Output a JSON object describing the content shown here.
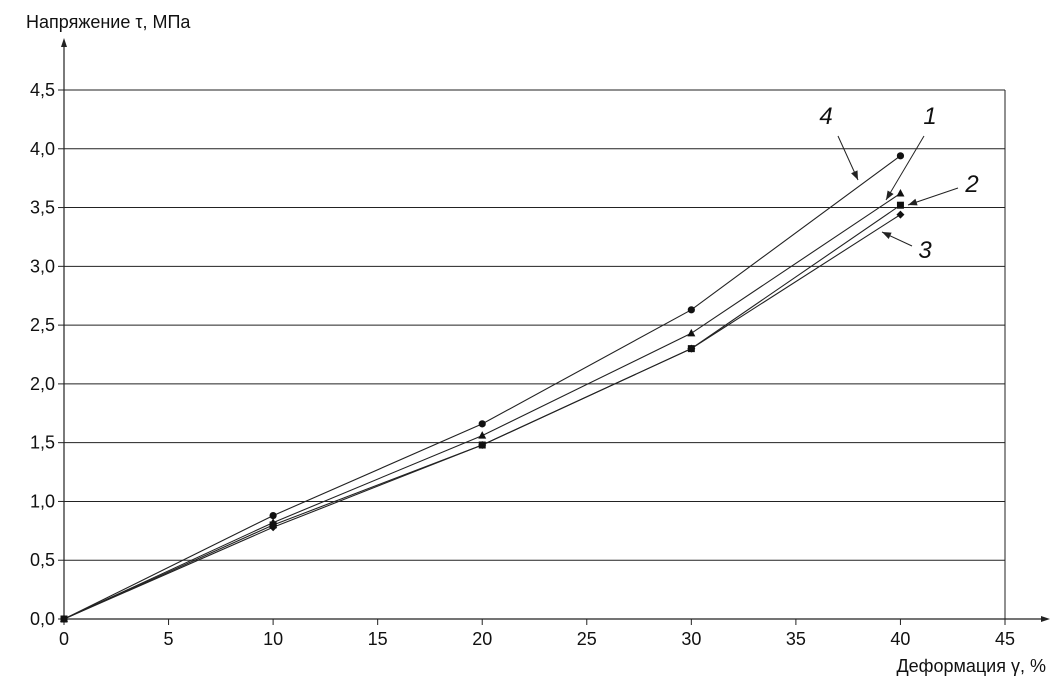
{
  "chart_data": {
    "type": "line",
    "title": "",
    "ylabel": "Напряжение τ, МПа",
    "xlabel": "Деформация γ, %",
    "xlim": [
      0,
      45
    ],
    "ylim": [
      0,
      4.5
    ],
    "x_ticks": [
      "0",
      "5",
      "10",
      "15",
      "20",
      "25",
      "30",
      "35",
      "40",
      "45"
    ],
    "y_ticks": [
      "0,0",
      "0,5",
      "1,0",
      "1,5",
      "2,0",
      "2,5",
      "3,0",
      "3,5",
      "4,0",
      "4,5"
    ],
    "grid": "horizontal",
    "x": [
      0,
      10,
      20,
      30,
      40
    ],
    "series": [
      {
        "name": "1",
        "marker": "triangle",
        "values": [
          0,
          0.82,
          1.56,
          2.43,
          3.62
        ]
      },
      {
        "name": "2",
        "marker": "square",
        "values": [
          0,
          0.8,
          1.48,
          2.3,
          3.52
        ]
      },
      {
        "name": "3",
        "marker": "diamond",
        "values": [
          0,
          0.78,
          1.48,
          2.3,
          3.44
        ]
      },
      {
        "name": "4",
        "marker": "circle",
        "values": [
          0,
          0.88,
          1.66,
          2.63,
          3.94
        ]
      }
    ]
  }
}
